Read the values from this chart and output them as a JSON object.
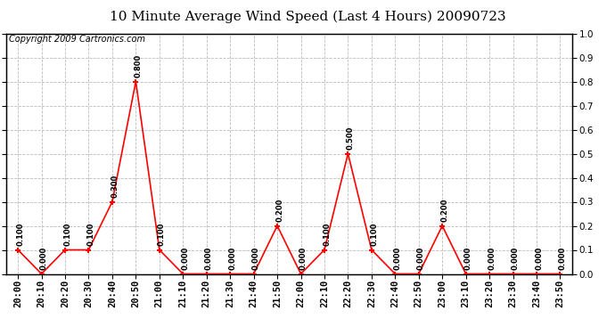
{
  "title": "10 Minute Average Wind Speed (Last 4 Hours) 20090723",
  "copyright": "Copyright 2009 Cartronics.com",
  "x_labels": [
    "20:00",
    "20:10",
    "20:20",
    "20:30",
    "20:40",
    "20:50",
    "21:00",
    "21:10",
    "21:20",
    "21:30",
    "21:40",
    "21:50",
    "22:00",
    "22:10",
    "22:20",
    "22:30",
    "22:40",
    "22:50",
    "23:00",
    "23:10",
    "23:20",
    "23:30",
    "23:40",
    "23:50"
  ],
  "values": [
    0.1,
    0.0,
    0.1,
    0.1,
    0.3,
    0.8,
    0.1,
    0.0,
    0.0,
    0.0,
    0.0,
    0.2,
    0.0,
    0.1,
    0.5,
    0.1,
    0.0,
    0.0,
    0.2,
    0.0,
    0.0,
    0.0,
    0.0,
    0.0
  ],
  "ylim": [
    0.0,
    1.0
  ],
  "yticks": [
    0.0,
    0.1,
    0.2,
    0.3,
    0.4,
    0.5,
    0.6,
    0.7,
    0.8,
    0.9,
    1.0
  ],
  "line_color": "red",
  "marker_color": "red",
  "bg_color": "#ffffff",
  "grid_color": "#bbbbbb",
  "label_fontsize": 7.5,
  "title_fontsize": 11,
  "annotation_fontsize": 6,
  "copyright_fontsize": 7
}
